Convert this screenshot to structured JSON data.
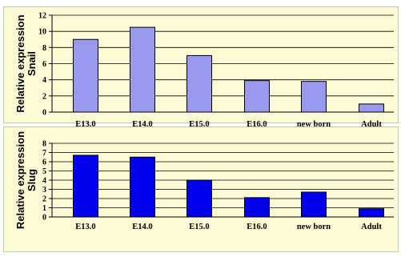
{
  "chart_data": [
    {
      "type": "bar",
      "categories": [
        "E13.0",
        "E14.0",
        "E15.0",
        "E16.0",
        "new born",
        "Adult"
      ],
      "values": [
        9.0,
        10.5,
        7.0,
        3.9,
        3.8,
        1.0
      ],
      "ylabel_line1": "Relative expression",
      "ylabel_line2": "Snail",
      "ylim": [
        0,
        12
      ],
      "yticks": [
        "0",
        "2",
        "4",
        "6",
        "8",
        "10",
        "12"
      ],
      "bar_color": "#9999ee",
      "grid": true
    },
    {
      "type": "bar",
      "categories": [
        "E13.0",
        "E14.0",
        "E15.0",
        "E16.0",
        "new born",
        "Adult"
      ],
      "values": [
        6.7,
        6.5,
        4.0,
        2.1,
        2.7,
        0.9
      ],
      "ylabel_line1": "Relative expression",
      "ylabel_line2": "Slug",
      "ylim": [
        0,
        8
      ],
      "yticks": [
        "0",
        "1",
        "2",
        "3",
        "4",
        "5",
        "6",
        "7",
        "8"
      ],
      "bar_color": "#0000ee",
      "grid": true
    }
  ]
}
